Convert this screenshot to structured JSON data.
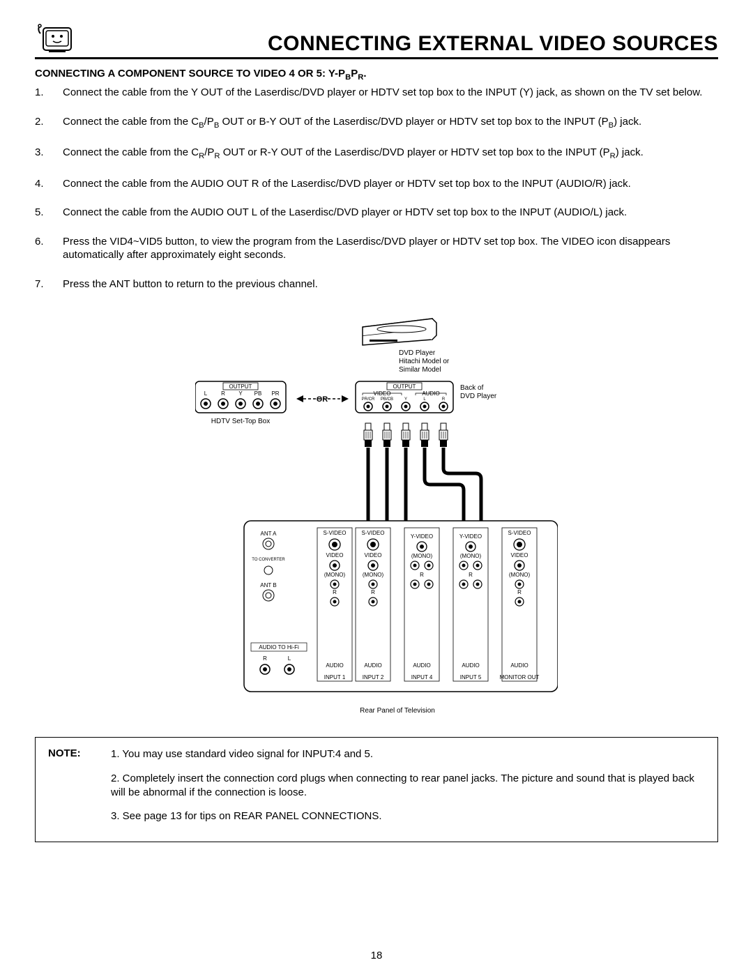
{
  "page_title": "CONNECTING EXTERNAL VIDEO SOURCES",
  "section_heading_pre": "CONNECTING A COMPONENT SOURCE TO VIDEO 4 OR 5:  Y-P",
  "section_heading_sub1": "B",
  "section_heading_mid": "P",
  "section_heading_sub2": "R",
  "section_heading_post": ".",
  "steps": {
    "s1": "Connect the cable from the Y OUT of the Laserdisc/DVD player or HDTV set top box to the INPUT (Y) jack, as shown on the TV set below.",
    "s2_a": "Connect the cable from the C",
    "s2_b": "B",
    "s2_c": "/P",
    "s2_d": "B",
    "s2_e": " OUT or B-Y OUT of the Laserdisc/DVD player or HDTV set top box to the INPUT (P",
    "s2_f": "B",
    "s2_g": ") jack.",
    "s3_a": "Connect the cable from the C",
    "s3_b": "R",
    "s3_c": "/P",
    "s3_d": "R",
    "s3_e": " OUT or R-Y OUT of the Laserdisc/DVD player or HDTV set top box to the INPUT (P",
    "s3_f": "R",
    "s3_g": ") jack.",
    "s4": "Connect the cable from the AUDIO OUT R of the Laserdisc/DVD player or HDTV set top box to the INPUT (AUDIO/R) jack.",
    "s5": "Connect the cable from the AUDIO OUT L of the Laserdisc/DVD player or HDTV set top box to the INPUT (AUDIO/L) jack.",
    "s6": "Press the VID4~VID5 button, to view the program from the Laserdisc/DVD player or HDTV set top box.  The VIDEO icon disappears automatically after approximately eight seconds.",
    "s7": "Press the ANT button to return to the previous channel."
  },
  "diagram": {
    "dvd_label1": "DVD Player",
    "dvd_label2": "Hitachi Model or",
    "dvd_label3": "Similar Model",
    "output_l": "OUTPUT",
    "hdtv_jacks": [
      "L",
      "R",
      "Y",
      "PB",
      "PR"
    ],
    "hdtv_label": "HDTV Set-Top Box",
    "or_label": "OR",
    "output_r": "OUTPUT",
    "video_bracket": "VIDEO",
    "audio_bracket": "AUDIO",
    "dvd_jacks": [
      "PR/CR",
      "PB/CB",
      "Y",
      "L",
      "R"
    ],
    "back_of": "Back of",
    "dvd_player": "DVD Player",
    "rear_caption": "Rear Panel of Television",
    "ant_a": "ANT A",
    "to_conv": "TO CONVERTER",
    "ant_b": "ANT B",
    "audio_hifi": "AUDIO TO Hi-Fi",
    "svideo": "S-VIDEO",
    "video": "VIDEO",
    "yvideo": "Y-VIDEO",
    "mono": "(MONO)",
    "audio": "AUDIO",
    "inputs": [
      "INPUT 1",
      "INPUT 2",
      "INPUT 4",
      "INPUT 5",
      "MONITOR OUT"
    ],
    "r": "R",
    "l": "L"
  },
  "notes": {
    "label": "NOTE:",
    "n1": "1.  You may use standard video signal for INPUT:4 and 5.",
    "n2": "2.  Completely insert the connection cord plugs when connecting to rear panel jacks.  The picture and sound that is played back will be abnormal if the connection is loose.",
    "n3": "3.  See page 13 for tips on REAR PANEL CONNECTIONS."
  },
  "page_number": "18"
}
